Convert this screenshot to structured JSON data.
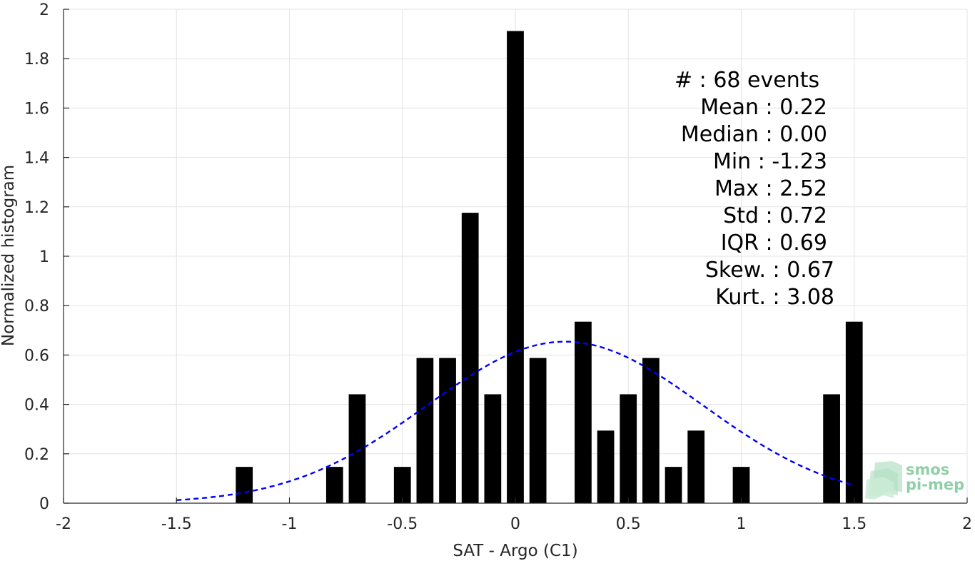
{
  "chart_data": {
    "type": "bar",
    "xlabel": "SAT - Argo (C1)",
    "ylabel": "Normalized histogram",
    "xlim": [
      -2,
      2
    ],
    "ylim": [
      0,
      2
    ],
    "xticks": [
      -2,
      -1.5,
      -1,
      -0.5,
      0,
      0.5,
      1,
      1.5,
      2
    ],
    "xtick_labels": [
      "-2",
      "-1.5",
      "-1",
      "-0.5",
      "0",
      "0.5",
      "1",
      "1.5",
      "2"
    ],
    "yticks": [
      0,
      0.2,
      0.4,
      0.6,
      0.8,
      1,
      1.2,
      1.4,
      1.6,
      1.8,
      2
    ],
    "ytick_labels": [
      "0",
      "0.2",
      "0.4",
      "0.6",
      "0.8",
      "1",
      "1.2",
      "1.4",
      "1.6",
      "1.8",
      "2"
    ],
    "grid": true,
    "bar_color": "#000000",
    "bin_width": 0.1,
    "bars": [
      {
        "x": -1.2,
        "y": 0.147
      },
      {
        "x": -0.8,
        "y": 0.147
      },
      {
        "x": -0.7,
        "y": 0.441
      },
      {
        "x": -0.5,
        "y": 0.147
      },
      {
        "x": -0.4,
        "y": 0.588
      },
      {
        "x": -0.3,
        "y": 0.588
      },
      {
        "x": -0.2,
        "y": 1.176
      },
      {
        "x": -0.1,
        "y": 0.441
      },
      {
        "x": 0.0,
        "y": 1.912
      },
      {
        "x": 0.1,
        "y": 0.588
      },
      {
        "x": 0.3,
        "y": 0.735
      },
      {
        "x": 0.4,
        "y": 0.294
      },
      {
        "x": 0.5,
        "y": 0.441
      },
      {
        "x": 0.6,
        "y": 0.588
      },
      {
        "x": 0.7,
        "y": 0.147
      },
      {
        "x": 0.8,
        "y": 0.294
      },
      {
        "x": 1.0,
        "y": 0.147
      },
      {
        "x": 1.4,
        "y": 0.441
      },
      {
        "x": 1.5,
        "y": 0.735
      }
    ],
    "fit_curve": {
      "type": "gaussian",
      "mean": 0.22,
      "std": 0.61,
      "x_range": [
        -1.5,
        1.5
      ],
      "color": "#0000ff",
      "style": "dashed"
    },
    "annotation_lines": [
      "#  : 68 events",
      "Mean : 0.22",
      "Median : 0.00",
      "Min : -1.23",
      "Max : 2.52",
      "Std : 0.72",
      "IQR : 0.69",
      "Skew. : 0.67",
      "Kurt. : 3.08"
    ]
  },
  "logo": {
    "line1": "smos",
    "line2": "pi-mep",
    "color": "#8fcfa8"
  }
}
